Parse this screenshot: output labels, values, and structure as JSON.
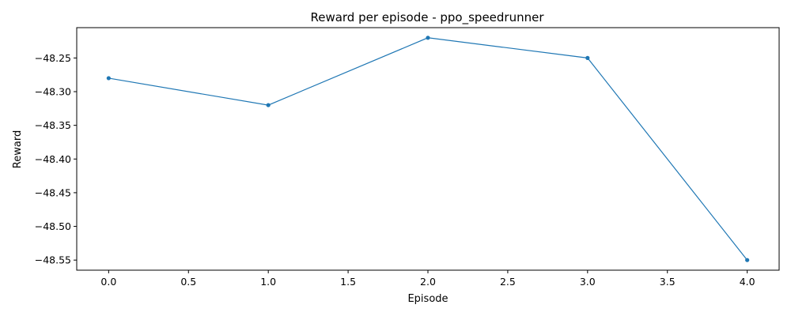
{
  "chart_data": {
    "type": "line",
    "title": "Reward per episode - ppo_speedrunner",
    "xlabel": "Episode",
    "ylabel": "Reward",
    "xlim": [
      -0.2,
      4.2
    ],
    "ylim": [
      -48.565,
      -48.205
    ],
    "xticks": [
      0.0,
      0.5,
      1.0,
      1.5,
      2.0,
      2.5,
      3.0,
      3.5,
      4.0
    ],
    "xtick_labels": [
      "0.0",
      "0.5",
      "1.0",
      "1.5",
      "2.0",
      "2.5",
      "3.0",
      "3.5",
      "4.0"
    ],
    "yticks": [
      -48.25,
      -48.3,
      -48.35,
      -48.4,
      -48.45,
      -48.5,
      -48.55
    ],
    "ytick_labels": [
      "−48.25",
      "−48.30",
      "−48.35",
      "−48.40",
      "−48.45",
      "−48.50",
      "−48.55"
    ],
    "grid": false,
    "series": [
      {
        "color": "#1f77b4",
        "marker": "circle",
        "x": [
          0,
          1,
          2,
          3,
          4
        ],
        "y": [
          -48.28,
          -48.32,
          -48.22,
          -48.25,
          -48.55
        ]
      }
    ]
  }
}
